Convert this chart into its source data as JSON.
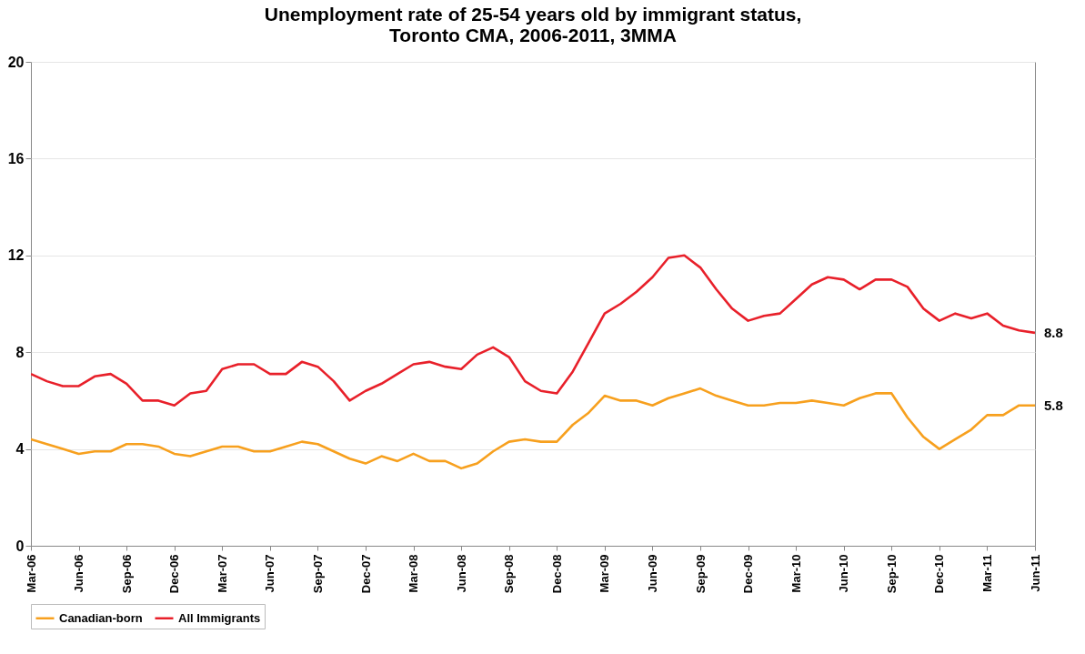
{
  "chart_data": {
    "type": "line",
    "title": [
      "Unemployment rate of 25-54 years old by immigrant status,",
      "Toronto CMA, 2006-2011, 3MMA"
    ],
    "categories": [
      "Mar-06",
      null,
      null,
      "Jun-06",
      null,
      null,
      "Sep-06",
      null,
      null,
      "Dec-06",
      null,
      null,
      "Mar-07",
      null,
      null,
      "Jun-07",
      null,
      null,
      "Sep-07",
      null,
      null,
      "Dec-07",
      null,
      null,
      "Mar-08",
      null,
      null,
      "Jun-08",
      null,
      null,
      "Sep-08",
      null,
      null,
      "Dec-08",
      null,
      null,
      "Mar-09",
      null,
      null,
      "Jun-09",
      null,
      null,
      "Sep-09",
      null,
      null,
      "Dec-09",
      null,
      null,
      "Mar-10",
      null,
      null,
      "Jun-10",
      null,
      null,
      "Sep-10",
      null,
      null,
      "Dec-10",
      null,
      null,
      "Mar-11",
      null,
      null,
      "Jun-11"
    ],
    "series": [
      {
        "name": "Canadian-born",
        "color": "#f7a01e",
        "values": [
          4.4,
          4.2,
          4.0,
          3.8,
          3.9,
          3.9,
          4.2,
          4.2,
          4.1,
          3.8,
          3.7,
          3.9,
          4.1,
          4.1,
          3.9,
          3.9,
          4.1,
          4.3,
          4.2,
          3.9,
          3.6,
          3.4,
          3.7,
          3.5,
          3.8,
          3.5,
          3.5,
          3.2,
          3.4,
          3.9,
          4.3,
          4.4,
          4.3,
          4.3,
          5.0,
          5.5,
          6.2,
          6.0,
          6.0,
          5.8,
          6.1,
          6.3,
          6.5,
          6.2,
          6.0,
          5.8,
          5.8,
          5.9,
          5.9,
          6.0,
          5.9,
          5.8,
          6.1,
          6.3,
          6.3,
          5.3,
          4.5,
          4.0,
          4.4,
          4.8,
          5.4,
          5.4,
          5.8,
          5.8
        ],
        "value_labels": [
          null,
          null,
          null,
          null,
          null,
          null,
          null,
          null,
          null,
          null,
          null,
          null,
          null,
          null,
          null,
          null,
          null,
          null,
          null,
          null,
          null,
          null,
          null,
          null,
          null,
          null,
          null,
          null,
          null,
          null,
          null,
          null,
          null,
          null,
          null,
          null,
          null,
          null,
          null,
          null,
          null,
          null,
          null,
          null,
          null,
          null,
          null,
          null,
          null,
          null,
          null,
          null,
          null,
          null,
          null,
          null,
          null,
          null,
          null,
          null,
          null,
          null,
          null,
          "5.8"
        ]
      },
      {
        "name": "All Immigrants",
        "color": "#e8202a",
        "values": [
          7.1,
          6.8,
          6.6,
          6.6,
          7.0,
          7.1,
          6.7,
          6.0,
          6.0,
          5.8,
          6.3,
          6.4,
          7.3,
          7.5,
          7.5,
          7.1,
          7.1,
          7.6,
          7.4,
          6.8,
          6.0,
          6.4,
          6.7,
          7.1,
          7.5,
          7.6,
          7.4,
          7.3,
          7.9,
          8.2,
          7.8,
          6.8,
          6.4,
          6.3,
          7.2,
          8.4,
          9.6,
          10.0,
          10.5,
          11.1,
          11.9,
          12.0,
          11.5,
          10.6,
          9.8,
          9.3,
          9.5,
          9.6,
          10.2,
          10.8,
          11.1,
          11.0,
          10.6,
          11.0,
          11.0,
          10.7,
          9.8,
          9.3,
          9.6,
          9.4,
          9.6,
          9.1,
          8.9,
          8.8
        ],
        "value_labels": [
          null,
          null,
          null,
          null,
          null,
          null,
          null,
          null,
          null,
          null,
          null,
          null,
          null,
          null,
          null,
          null,
          null,
          null,
          null,
          null,
          null,
          null,
          null,
          null,
          null,
          null,
          null,
          null,
          null,
          null,
          null,
          null,
          null,
          null,
          null,
          null,
          null,
          null,
          null,
          null,
          null,
          null,
          null,
          null,
          null,
          null,
          null,
          null,
          null,
          null,
          null,
          null,
          null,
          null,
          null,
          null,
          null,
          null,
          null,
          null,
          null,
          null,
          null,
          "8.8"
        ]
      }
    ],
    "ylim": [
      0,
      20
    ],
    "yticks": [
      0,
      4,
      8,
      12,
      16,
      20
    ],
    "grid": "y",
    "legend": "bottom"
  }
}
